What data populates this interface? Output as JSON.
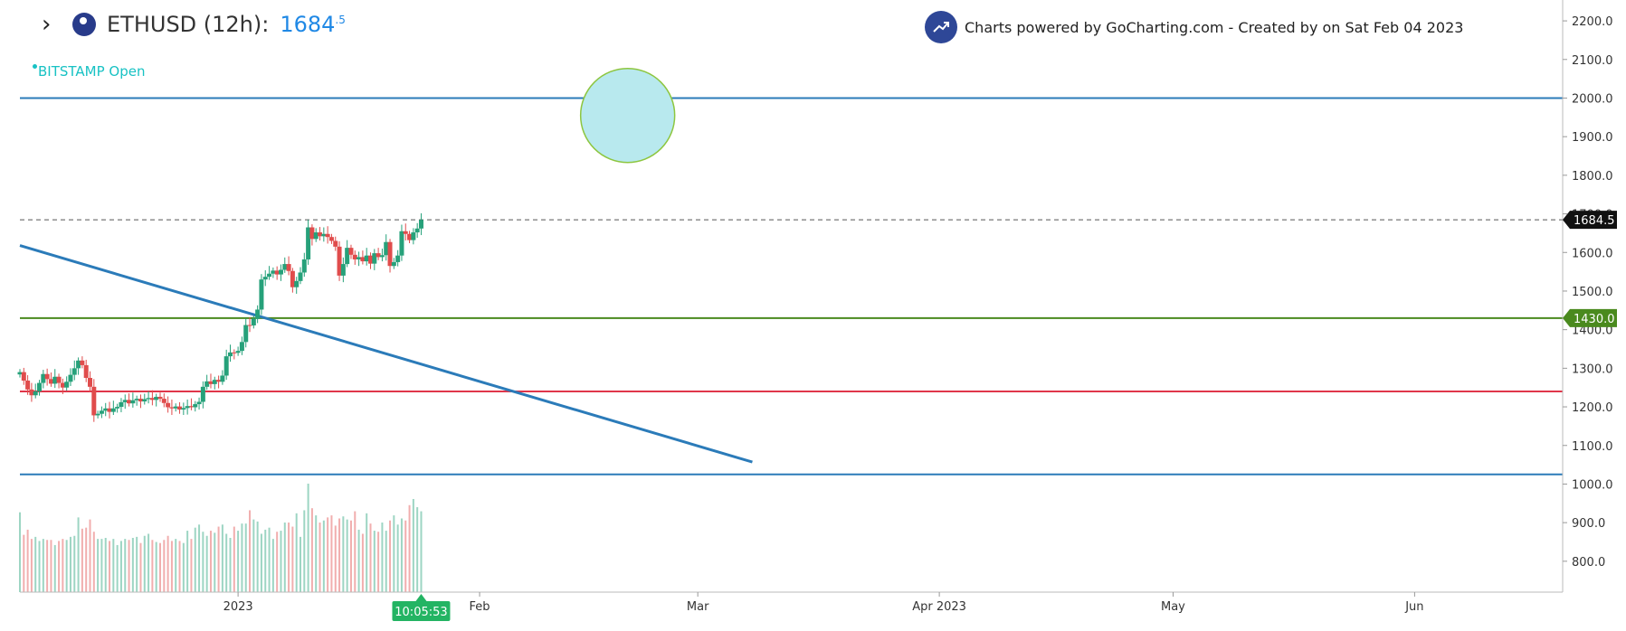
{
  "header": {
    "nav_icon": "chevron-right-icon",
    "symbol_icon": "crypto-logo-icon",
    "symbol": "ETHUSD (12h):",
    "price_main": "1684",
    "price_frac": ".5",
    "exchange": "BITSTAMP Open"
  },
  "branding": {
    "icon": "trending-chart-icon",
    "text": "Charts powered by GoCharting.com - Created by  on Sat Feb 04 2023"
  },
  "colors": {
    "up": "#26a17a",
    "down": "#e04c4c",
    "blue_line": "#2b7bb9",
    "green_line": "#4a8a1e",
    "red_line": "#e0364a",
    "circle_fill": "#b8e9ee",
    "circle_stroke": "#8dc63f",
    "countdown_bg": "#23b463"
  },
  "chart_data": {
    "type": "candlestick",
    "symbol": "ETHUSD",
    "interval": "12h",
    "y_axis": {
      "range": [
        720,
        2240
      ],
      "ticks": [
        2200,
        2100,
        2000,
        1900,
        1800,
        1700,
        1600,
        1500,
        1400,
        1300,
        1200,
        1100,
        1000,
        900,
        800
      ],
      "tick_labels": [
        "2200.0",
        "2100.0",
        "2000.0",
        "1900.0",
        "1800.0",
        "1700.0",
        "1600.0",
        "1500.0",
        "1400.0",
        "1300.0",
        "1200.0",
        "1100.0",
        "1000.0",
        "900.0",
        "800.0"
      ]
    },
    "x_axis": {
      "start": "2022-12-04",
      "end": "2023-06-20",
      "ticks": [
        {
          "date": "2023-01-01",
          "label": "2023"
        },
        {
          "date": "2023-02-01",
          "label": "Feb"
        },
        {
          "date": "2023-03-01",
          "label": "Mar"
        },
        {
          "date": "2023-04-01",
          "label": "Apr 2023"
        },
        {
          "date": "2023-05-01",
          "label": "May"
        },
        {
          "date": "2023-06-01",
          "label": "Jun"
        }
      ]
    },
    "closes": [
      1290,
      1268,
      1245,
      1230,
      1240,
      1262,
      1285,
      1272,
      1260,
      1278,
      1262,
      1250,
      1265,
      1283,
      1300,
      1320,
      1308,
      1275,
      1252,
      1178,
      1182,
      1190,
      1196,
      1187,
      1196,
      1200,
      1212,
      1218,
      1209,
      1217,
      1221,
      1214,
      1220,
      1223,
      1218,
      1226,
      1221,
      1210,
      1199,
      1196,
      1201,
      1193,
      1197,
      1202,
      1199,
      1207,
      1213,
      1252,
      1266,
      1259,
      1270,
      1265,
      1281,
      1331,
      1341,
      1340,
      1345,
      1368,
      1412,
      1411,
      1428,
      1452,
      1530,
      1537,
      1545,
      1553,
      1543,
      1555,
      1570,
      1552,
      1510,
      1526,
      1548,
      1582,
      1665,
      1635,
      1652,
      1642,
      1648,
      1640,
      1630,
      1615,
      1540,
      1570,
      1612,
      1594,
      1582,
      1588,
      1577,
      1592,
      1571,
      1598,
      1588,
      1593,
      1627,
      1565,
      1575,
      1592,
      1655,
      1648,
      1632,
      1652,
      1662,
      1684.5
    ],
    "volumes": [
      78,
      56,
      61,
      52,
      54,
      50,
      52,
      51,
      51,
      46,
      50,
      52,
      51,
      54,
      55,
      73,
      62,
      63,
      71,
      59,
      52,
      52,
      53,
      50,
      52,
      46,
      50,
      52,
      51,
      53,
      54,
      48,
      55,
      57,
      51,
      49,
      48,
      51,
      55,
      50,
      52,
      50,
      48,
      60,
      52,
      63,
      66,
      59,
      55,
      60,
      58,
      64,
      66,
      57,
      53,
      64,
      60,
      67,
      67,
      80,
      71,
      69,
      57,
      61,
      63,
      52,
      59,
      60,
      68,
      68,
      64,
      77,
      54,
      80,
      106,
      82,
      75,
      68,
      70,
      73,
      75,
      65,
      72,
      74,
      71,
      70,
      79,
      61,
      57,
      77,
      67,
      60,
      59,
      68,
      60,
      70,
      75,
      66,
      72,
      70,
      85,
      91,
      83,
      79
    ],
    "volume_overlay": "bottom, unscaled",
    "last_price": 1684.5,
    "last_price_label": "1684.5",
    "horizontal_lines": [
      {
        "name": "resistance-2000",
        "value": 2000,
        "color": "#2b7bb9"
      },
      {
        "name": "support-1430",
        "value": 1430,
        "color": "#4a8a1e",
        "label": "1430.0"
      },
      {
        "name": "support-1240",
        "value": 1240,
        "color": "#e0364a"
      },
      {
        "name": "support-1025",
        "value": 1025,
        "color": "#2b7bb9"
      }
    ],
    "trendline": {
      "from": {
        "date": "2022-12-04",
        "value": 1618
      },
      "to": {
        "date": "2023-03-08",
        "value": 1057
      },
      "color": "#2b7bb9"
    },
    "target_circle": {
      "date": "2023-02-20",
      "value": 1955
    },
    "countdown": "10:05:53",
    "grid": false
  }
}
